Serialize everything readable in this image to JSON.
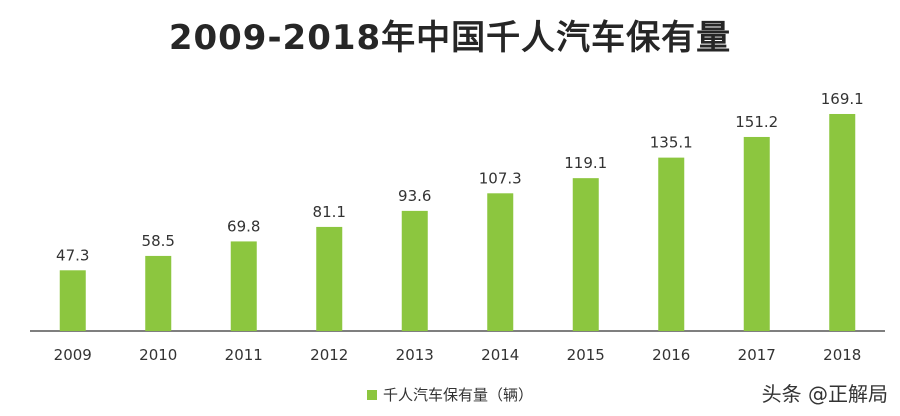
{
  "chart_data": {
    "type": "bar",
    "title": "2009-2018年中国千人汽车保有量",
    "categories": [
      "2009",
      "2010",
      "2011",
      "2012",
      "2013",
      "2014",
      "2015",
      "2016",
      "2017",
      "2018"
    ],
    "series": [
      {
        "name": "千人汽车保有量（辆）",
        "values": [
          47.3,
          58.5,
          69.8,
          81.1,
          93.6,
          107.3,
          119.1,
          135.1,
          151.2,
          169.1
        ]
      }
    ],
    "ylim": [
      0,
      180
    ],
    "xlabel": "",
    "ylabel": "",
    "grid": false,
    "legend_position": "bottom",
    "bar_color": "#8cc63f",
    "axis_color": "#333333"
  },
  "watermark": "头条 @正解局"
}
